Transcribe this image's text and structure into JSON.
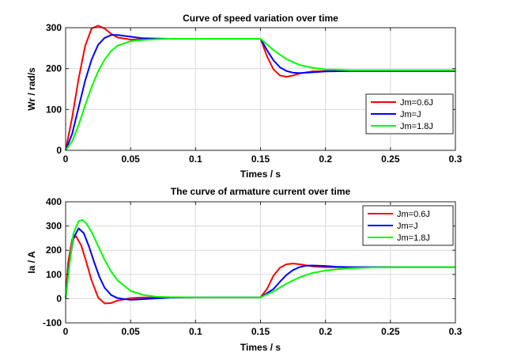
{
  "chart_data": [
    {
      "type": "line",
      "title": "Curve of speed variation over time",
      "xlabel": "Times / s",
      "ylabel": "Wr / rad/s",
      "xlim": [
        0,
        0.3
      ],
      "ylim": [
        0,
        300
      ],
      "xticks": [
        0,
        0.05,
        0.1,
        0.15,
        0.2,
        0.25,
        0.3
      ],
      "xtick_labels": [
        "0",
        "0.05",
        "0.1",
        "0.15",
        "0.2",
        "0.25",
        "0.3"
      ],
      "yticks": [
        0,
        100,
        200,
        300
      ],
      "ytick_labels": [
        "0",
        "100",
        "200",
        "300"
      ],
      "grid": true,
      "legend_position": "right",
      "series": [
        {
          "name": "Jm=0.6J",
          "color": "#ff0000",
          "x": [
            0,
            0.005,
            0.01,
            0.015,
            0.02,
            0.025,
            0.03,
            0.035,
            0.04,
            0.05,
            0.06,
            0.08,
            0.1,
            0.15,
            0.155,
            0.16,
            0.165,
            0.17,
            0.175,
            0.18,
            0.19,
            0.2,
            0.22,
            0.25,
            0.3
          ],
          "y": [
            0,
            80,
            175,
            255,
            298,
            305,
            298,
            285,
            276,
            271,
            272,
            273,
            273,
            273,
            230,
            198,
            183,
            180,
            183,
            188,
            193,
            194,
            194,
            194,
            194
          ]
        },
        {
          "name": "Jm=J",
          "color": "#0000ff",
          "x": [
            0,
            0.005,
            0.01,
            0.015,
            0.02,
            0.025,
            0.03,
            0.035,
            0.04,
            0.05,
            0.06,
            0.08,
            0.1,
            0.15,
            0.155,
            0.16,
            0.165,
            0.17,
            0.175,
            0.18,
            0.19,
            0.2,
            0.22,
            0.25,
            0.3
          ],
          "y": [
            0,
            40,
            105,
            170,
            222,
            258,
            275,
            282,
            282,
            278,
            274,
            273,
            273,
            273,
            245,
            220,
            203,
            194,
            190,
            189,
            191,
            193,
            194,
            194,
            194
          ]
        },
        {
          "name": "Jm=1.8J",
          "color": "#00ff00",
          "x": [
            0,
            0.005,
            0.01,
            0.015,
            0.02,
            0.025,
            0.03,
            0.035,
            0.04,
            0.05,
            0.06,
            0.07,
            0.08,
            0.1,
            0.15,
            0.16,
            0.17,
            0.18,
            0.19,
            0.2,
            0.21,
            0.22,
            0.25,
            0.3
          ],
          "y": [
            0,
            22,
            62,
            110,
            155,
            193,
            222,
            243,
            256,
            267,
            270,
            272,
            273,
            273,
            273,
            245,
            223,
            209,
            202,
            198,
            197,
            196,
            196,
            196
          ]
        }
      ]
    },
    {
      "type": "line",
      "title": "The curve of armature current over time",
      "xlabel": "Times / s",
      "ylabel": "Ia / A",
      "xlim": [
        0,
        0.3
      ],
      "ylim": [
        -100,
        400
      ],
      "xticks": [
        0,
        0.05,
        0.1,
        0.15,
        0.2,
        0.25,
        0.3
      ],
      "xtick_labels": [
        "0",
        "0.05",
        "0.1",
        "0.15",
        "0.2",
        "0.25",
        "0.3"
      ],
      "yticks": [
        -100,
        0,
        100,
        200,
        300,
        400
      ],
      "ytick_labels": [
        "-100",
        "0",
        "100",
        "200",
        "300",
        "400"
      ],
      "grid": true,
      "legend_position": "top-right",
      "series": [
        {
          "name": "Jm=0.6J",
          "color": "#ff0000",
          "x": [
            0,
            0.002,
            0.005,
            0.008,
            0.012,
            0.016,
            0.02,
            0.025,
            0.03,
            0.035,
            0.04,
            0.05,
            0.06,
            0.08,
            0.1,
            0.15,
            0.155,
            0.16,
            0.165,
            0.17,
            0.175,
            0.18,
            0.19,
            0.2,
            0.22,
            0.25,
            0.3
          ],
          "y": [
            0,
            150,
            245,
            258,
            220,
            150,
            75,
            5,
            -20,
            -18,
            -8,
            2,
            5,
            5,
            5,
            5,
            40,
            95,
            128,
            142,
            145,
            142,
            133,
            130,
            130,
            130,
            130
          ]
        },
        {
          "name": "Jm=J",
          "color": "#0000ff",
          "x": [
            0,
            0.003,
            0.006,
            0.01,
            0.014,
            0.018,
            0.022,
            0.026,
            0.03,
            0.035,
            0.04,
            0.05,
            0.06,
            0.08,
            0.1,
            0.15,
            0.16,
            0.165,
            0.17,
            0.175,
            0.18,
            0.185,
            0.19,
            0.2,
            0.21,
            0.22,
            0.25,
            0.3
          ],
          "y": [
            0,
            150,
            250,
            290,
            270,
            215,
            150,
            90,
            45,
            15,
            2,
            -5,
            -2,
            4,
            5,
            5,
            40,
            70,
            98,
            118,
            130,
            136,
            137,
            135,
            131,
            130,
            130,
            130
          ]
        },
        {
          "name": "Jm=1.8J",
          "color": "#00ff00",
          "x": [
            0,
            0.003,
            0.006,
            0.01,
            0.013,
            0.016,
            0.02,
            0.025,
            0.03,
            0.035,
            0.04,
            0.05,
            0.06,
            0.07,
            0.08,
            0.1,
            0.15,
            0.16,
            0.17,
            0.18,
            0.19,
            0.2,
            0.21,
            0.22,
            0.24,
            0.26,
            0.3
          ],
          "y": [
            0,
            140,
            270,
            320,
            325,
            310,
            275,
            218,
            160,
            112,
            75,
            32,
            15,
            8,
            6,
            5,
            5,
            30,
            62,
            88,
            106,
            116,
            122,
            126,
            129,
            130,
            130
          ]
        }
      ]
    }
  ]
}
